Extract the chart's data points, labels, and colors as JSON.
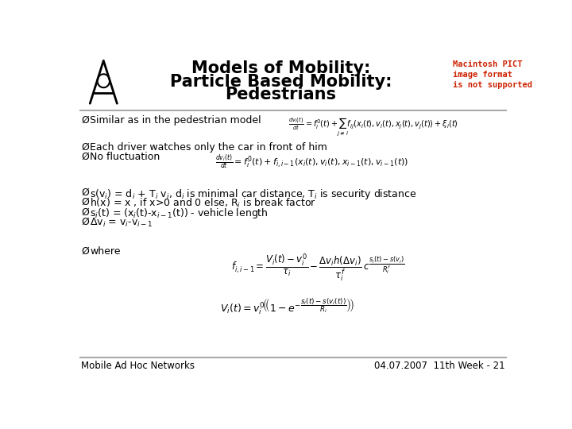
{
  "title_line1": "Models of Mobility:",
  "title_line2": "Particle Based Mobility:",
  "title_line3": "Pedestrians",
  "title_fontsize": 15,
  "background_color": "#ffffff",
  "text_color": "#000000",
  "footer_left": "Mobile Ad Hoc Networks",
  "footer_right": "04.07.2007  11th Week - 21",
  "footer_fontsize": 8.5,
  "bullet_char": "Ø",
  "pict_text_color": "#cc2200",
  "pict_text": "Macintosh PICT\nimage format\nis not supported",
  "line_color": "#aaaaaa",
  "bullet_fontsize": 9,
  "formula_color": "#000000"
}
